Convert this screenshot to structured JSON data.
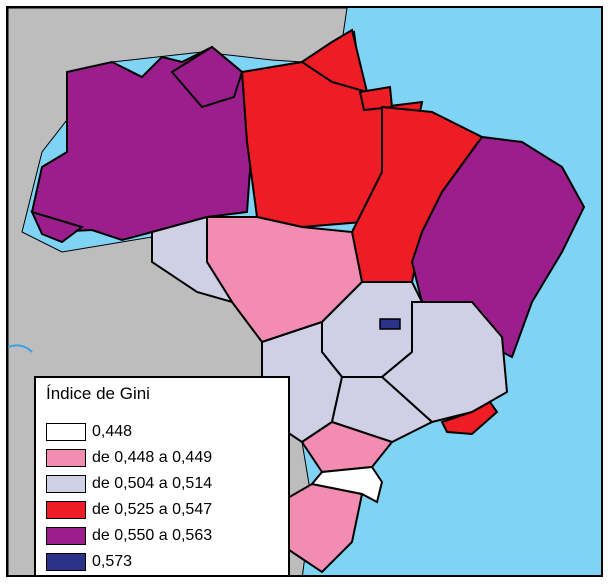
{
  "map": {
    "colors": {
      "ocean": "#7fd4f5",
      "neighbor": "#bdbdbd",
      "border": "#000000",
      "river": "#3aa0e0"
    }
  },
  "legend": {
    "title": "Índice de Gini",
    "items": [
      {
        "label": "0,448",
        "color": "#ffffff"
      },
      {
        "label": "de 0,448 a 0,449",
        "color": "#f28cb0"
      },
      {
        "label": "de 0,504 a 0,514",
        "color": "#cfcfe6"
      },
      {
        "label": "de 0,525 a 0,547",
        "color": "#ee1c25"
      },
      {
        "label": "de 0,550 a 0,563",
        "color": "#9b1e8c"
      },
      {
        "label": "0,573",
        "color": "#2b3288"
      }
    ]
  }
}
